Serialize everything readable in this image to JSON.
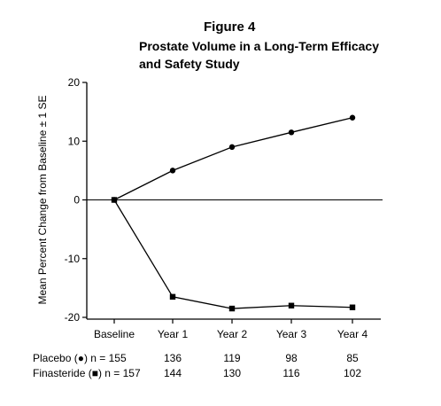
{
  "header": {
    "figure_label": "Figure 4",
    "title_line1": "Prostate Volume in a Long-Term Efficacy",
    "title_line2": "and Safety Study"
  },
  "chart_data": {
    "type": "line",
    "title": "Prostate Volume in a Long-Term Efficacy and Safety Study",
    "xlabel": "",
    "ylabel": "Mean Percent Change from Baseline ± 1 SE",
    "categories": [
      "Baseline",
      "Year 1",
      "Year 2",
      "Year 3",
      "Year 4"
    ],
    "ylim": [
      -20,
      20
    ],
    "yticks": [
      -20,
      -10,
      0,
      10,
      20
    ],
    "ytick_labels": [
      "-20",
      "-10",
      "0",
      "10",
      "20"
    ],
    "zero_line": true,
    "series": [
      {
        "name": "Placebo (●)",
        "marker": "circle",
        "values": [
          0,
          5,
          9,
          11.5,
          14
        ]
      },
      {
        "name": "Finasteride (■)",
        "marker": "square",
        "values": [
          0,
          -16.5,
          -18.5,
          -18,
          -18.3
        ]
      }
    ]
  },
  "n_table": {
    "rows": [
      {
        "label": "Placebo (●) n = 155",
        "values": [
          "136",
          "119",
          "98",
          "85"
        ]
      },
      {
        "label": "Finasteride (■) n = 157",
        "values": [
          "144",
          "130",
          "116",
          "102"
        ]
      }
    ]
  },
  "colors": {
    "ink": "#000000",
    "background": "#ffffff"
  }
}
